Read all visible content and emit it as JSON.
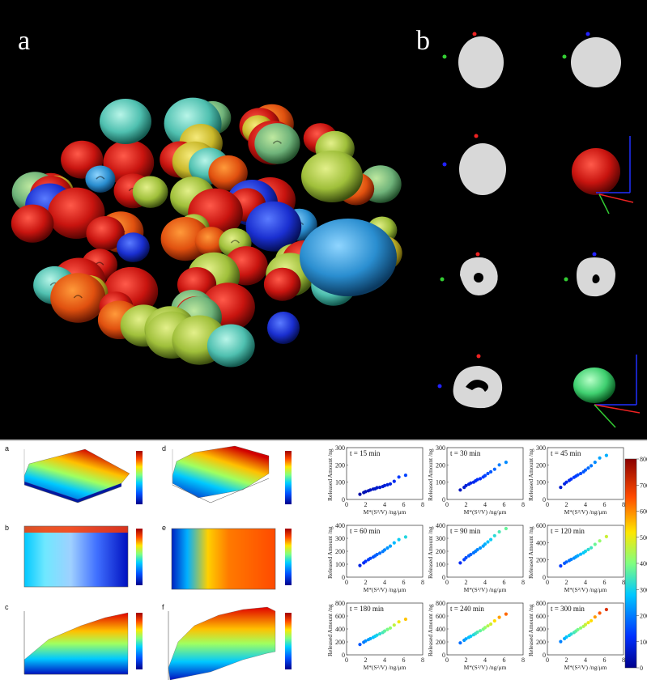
{
  "panel_top": {
    "label_a": "a",
    "label_b": "b"
  },
  "panel_bottom_left": {
    "labels": [
      "a",
      "b",
      "c",
      "d",
      "e",
      "f"
    ],
    "colorscale": [
      "#00008b",
      "#0047ff",
      "#00c8ff",
      "#7dff7d",
      "#ffe600",
      "#ff5a00",
      "#a00000"
    ]
  },
  "panel_bottom_right": {
    "y_label": "Released Amount /ng",
    "x_label": "M*(S²/V) /ng/μm",
    "colorbar_ticks": [
      "800",
      "700",
      "600",
      "500",
      "400",
      "300",
      "200",
      "100",
      "0"
    ],
    "subplots": [
      {
        "title": "t = 15 min",
        "yticks": [
          "300",
          "200",
          "100",
          "0"
        ]
      },
      {
        "title": "t = 30 min",
        "yticks": [
          "300",
          "200",
          "100",
          "0"
        ]
      },
      {
        "title": "t = 45 min",
        "yticks": [
          "300",
          "200",
          "100",
          "0"
        ]
      },
      {
        "title": "t = 60 min",
        "yticks": [
          "400",
          "300",
          "200",
          "100",
          "0"
        ]
      },
      {
        "title": "t = 90 min",
        "yticks": [
          "400",
          "300",
          "200",
          "100",
          "0"
        ]
      },
      {
        "title": "t = 120 min",
        "yticks": [
          "600",
          "400",
          "200",
          "0"
        ]
      },
      {
        "title": "t = 180 min",
        "yticks": [
          "800",
          "600",
          "400",
          "200",
          "0"
        ]
      },
      {
        "title": "t = 240 min",
        "yticks": [
          "800",
          "600",
          "400",
          "200",
          "0"
        ]
      },
      {
        "title": "t = 300 min",
        "yticks": [
          "800",
          "600",
          "400",
          "200",
          "0"
        ]
      }
    ],
    "xticks": [
      "0",
      "2",
      "4",
      "6",
      "8"
    ]
  },
  "chart_data": [
    {
      "type": "scatter",
      "title": "t = 15 min",
      "xlabel": "M*(S²/V) /ng/μm",
      "ylabel": "Released Amount /ng",
      "xlim": [
        0,
        8
      ],
      "ylim": [
        0,
        300
      ],
      "x": [
        1.4,
        1.8,
        2.0,
        2.3,
        2.5,
        2.8,
        3.0,
        3.2,
        3.5,
        3.8,
        4.0,
        4.3,
        4.6,
        5.0,
        5.5,
        6.2
      ],
      "y": [
        30,
        40,
        45,
        50,
        55,
        60,
        62,
        68,
        70,
        75,
        80,
        85,
        90,
        105,
        130,
        140
      ]
    },
    {
      "type": "scatter",
      "title": "t = 30 min",
      "xlabel": "M*(S²/V) /ng/μm",
      "ylabel": "Released Amount /ng",
      "xlim": [
        0,
        8
      ],
      "ylim": [
        0,
        300
      ],
      "x": [
        1.4,
        1.8,
        2.0,
        2.3,
        2.5,
        2.8,
        3.0,
        3.2,
        3.5,
        3.8,
        4.0,
        4.3,
        4.6,
        5.0,
        5.5,
        6.2
      ],
      "y": [
        55,
        70,
        80,
        88,
        95,
        100,
        108,
        115,
        120,
        130,
        138,
        150,
        160,
        175,
        200,
        215
      ]
    },
    {
      "type": "scatter",
      "title": "t = 45 min",
      "xlabel": "M*(S²/V) /ng/μm",
      "ylabel": "Released Amount /ng",
      "xlim": [
        0,
        8
      ],
      "ylim": [
        0,
        300
      ],
      "x": [
        1.4,
        1.8,
        2.0,
        2.3,
        2.5,
        2.8,
        3.0,
        3.2,
        3.5,
        3.8,
        4.0,
        4.3,
        4.6,
        5.0,
        5.5,
        6.2
      ],
      "y": [
        70,
        90,
        100,
        110,
        118,
        128,
        135,
        142,
        150,
        160,
        170,
        182,
        195,
        215,
        240,
        255
      ]
    },
    {
      "type": "scatter",
      "title": "t = 60 min",
      "xlabel": "M*(S²/V) /ng/μm",
      "ylabel": "Released Amount /ng",
      "xlim": [
        0,
        8
      ],
      "ylim": [
        0,
        400
      ],
      "x": [
        1.4,
        1.8,
        2.0,
        2.3,
        2.5,
        2.8,
        3.0,
        3.2,
        3.5,
        3.8,
        4.0,
        4.3,
        4.6,
        5.0,
        5.5,
        6.2
      ],
      "y": [
        90,
        110,
        122,
        135,
        145,
        155,
        165,
        175,
        185,
        198,
        210,
        225,
        240,
        265,
        290,
        310
      ]
    },
    {
      "type": "scatter",
      "title": "t = 90 min",
      "xlabel": "M*(S²/V) /ng/μm",
      "ylabel": "Released Amount /ng",
      "xlim": [
        0,
        8
      ],
      "ylim": [
        0,
        400
      ],
      "x": [
        1.4,
        1.8,
        2.0,
        2.3,
        2.5,
        2.8,
        3.0,
        3.2,
        3.5,
        3.8,
        4.0,
        4.3,
        4.6,
        5.0,
        5.5,
        6.2
      ],
      "y": [
        110,
        135,
        150,
        165,
        175,
        188,
        200,
        212,
        225,
        240,
        255,
        272,
        290,
        320,
        350,
        375
      ]
    },
    {
      "type": "scatter",
      "title": "t = 120 min",
      "xlabel": "M*(S²/V) /ng/μm",
      "ylabel": "Released Amount /ng",
      "xlim": [
        0,
        8
      ],
      "ylim": [
        0,
        600
      ],
      "x": [
        1.4,
        1.8,
        2.0,
        2.3,
        2.5,
        2.8,
        3.0,
        3.2,
        3.5,
        3.8,
        4.0,
        4.3,
        4.6,
        5.0,
        5.5,
        6.2
      ],
      "y": [
        130,
        160,
        175,
        192,
        205,
        220,
        235,
        248,
        265,
        282,
        300,
        320,
        340,
        380,
        420,
        470
      ]
    },
    {
      "type": "scatter",
      "title": "t = 180 min",
      "xlabel": "M*(S²/V) /ng/μm",
      "ylabel": "Released Amount /ng",
      "xlim": [
        0,
        8
      ],
      "ylim": [
        0,
        800
      ],
      "x": [
        1.4,
        1.8,
        2.0,
        2.3,
        2.5,
        2.8,
        3.0,
        3.2,
        3.5,
        3.8,
        4.0,
        4.3,
        4.6,
        5.0,
        5.5,
        6.2
      ],
      "y": [
        160,
        195,
        215,
        235,
        250,
        270,
        288,
        305,
        325,
        345,
        368,
        392,
        415,
        460,
        510,
        550
      ]
    },
    {
      "type": "scatter",
      "title": "t = 240 min",
      "xlabel": "M*(S²/V) /ng/μm",
      "ylabel": "Released Amount /ng",
      "xlim": [
        0,
        8
      ],
      "ylim": [
        0,
        800
      ],
      "x": [
        1.4,
        1.8,
        2.0,
        2.3,
        2.5,
        2.8,
        3.0,
        3.2,
        3.5,
        3.8,
        4.0,
        4.3,
        4.6,
        5.0,
        5.5,
        6.2
      ],
      "y": [
        185,
        225,
        248,
        270,
        288,
        310,
        330,
        350,
        372,
        395,
        420,
        448,
        475,
        525,
        580,
        630
      ]
    },
    {
      "type": "scatter",
      "title": "t = 300 min",
      "xlabel": "M*(S²/V) /ng/μm",
      "ylabel": "Released Amount /ng",
      "xlim": [
        0,
        8
      ],
      "ylim": [
        0,
        800
      ],
      "x": [
        1.4,
        1.8,
        2.0,
        2.3,
        2.5,
        2.8,
        3.0,
        3.2,
        3.5,
        3.8,
        4.0,
        4.3,
        4.6,
        5.0,
        5.5,
        6.2
      ],
      "y": [
        205,
        250,
        275,
        300,
        320,
        345,
        368,
        390,
        415,
        440,
        468,
        498,
        528,
        585,
        645,
        700
      ]
    }
  ]
}
